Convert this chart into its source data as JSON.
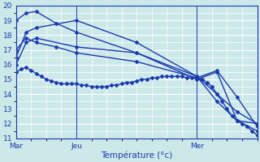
{
  "title": "Température (°c)",
  "bg_color": "#cce8e8",
  "grid_color": "#ffffff",
  "line_color": "#1a3aaf",
  "xlim": [
    0,
    48
  ],
  "ylim": [
    11,
    20
  ],
  "yticks": [
    11,
    12,
    13,
    14,
    15,
    16,
    17,
    18,
    19,
    20
  ],
  "xtick_positions": [
    0,
    12,
    24,
    36,
    48
  ],
  "xtick_labels": [
    "Mar",
    "Jeu",
    "",
    "Mer",
    ""
  ],
  "vlines": [
    0,
    12,
    36
  ],
  "dense_series": {
    "x": [
      0,
      1,
      2,
      3,
      4,
      5,
      6,
      7,
      8,
      9,
      10,
      11,
      12,
      13,
      14,
      15,
      16,
      17,
      18,
      19,
      20,
      21,
      22,
      23,
      24,
      25,
      26,
      27,
      28,
      29,
      30,
      31,
      32,
      33,
      34,
      35,
      36,
      37,
      38,
      39,
      40,
      41,
      42,
      43,
      44,
      45,
      46,
      47,
      48
    ],
    "y": [
      15.5,
      15.7,
      15.8,
      15.6,
      15.4,
      15.2,
      15.0,
      14.9,
      14.8,
      14.7,
      14.7,
      14.7,
      14.7,
      14.6,
      14.6,
      14.5,
      14.5,
      14.5,
      14.5,
      14.6,
      14.6,
      14.7,
      14.8,
      14.8,
      14.9,
      15.0,
      15.0,
      15.1,
      15.1,
      15.2,
      15.2,
      15.2,
      15.2,
      15.2,
      15.1,
      15.1,
      15.1,
      15.0,
      14.8,
      14.5,
      14.0,
      13.5,
      13.0,
      12.5,
      12.2,
      12.0,
      11.8,
      11.5,
      11.2
    ]
  },
  "forecast_series": [
    {
      "x": [
        0,
        2,
        4,
        12,
        24,
        36,
        40,
        44,
        48
      ],
      "y": [
        16.0,
        17.5,
        17.8,
        17.2,
        16.8,
        15.2,
        14.0,
        12.8,
        12.0
      ]
    },
    {
      "x": [
        0,
        2,
        4,
        12,
        24,
        36,
        40,
        44,
        48
      ],
      "y": [
        16.5,
        18.2,
        18.5,
        19.0,
        17.5,
        15.2,
        13.5,
        12.2,
        11.5
      ]
    },
    {
      "x": [
        0,
        2,
        4,
        8,
        12,
        24,
        36,
        40,
        44,
        48
      ],
      "y": [
        19.0,
        19.5,
        19.6,
        18.8,
        18.2,
        16.8,
        15.0,
        15.5,
        12.2,
        12.0
      ]
    },
    {
      "x": [
        0,
        2,
        4,
        8,
        12,
        24,
        36,
        40,
        44,
        48
      ],
      "y": [
        17.0,
        17.8,
        17.5,
        17.2,
        16.8,
        16.2,
        15.1,
        15.6,
        13.8,
        11.8
      ]
    }
  ],
  "marker": "D",
  "ms": 2.0,
  "lw": 1.0
}
